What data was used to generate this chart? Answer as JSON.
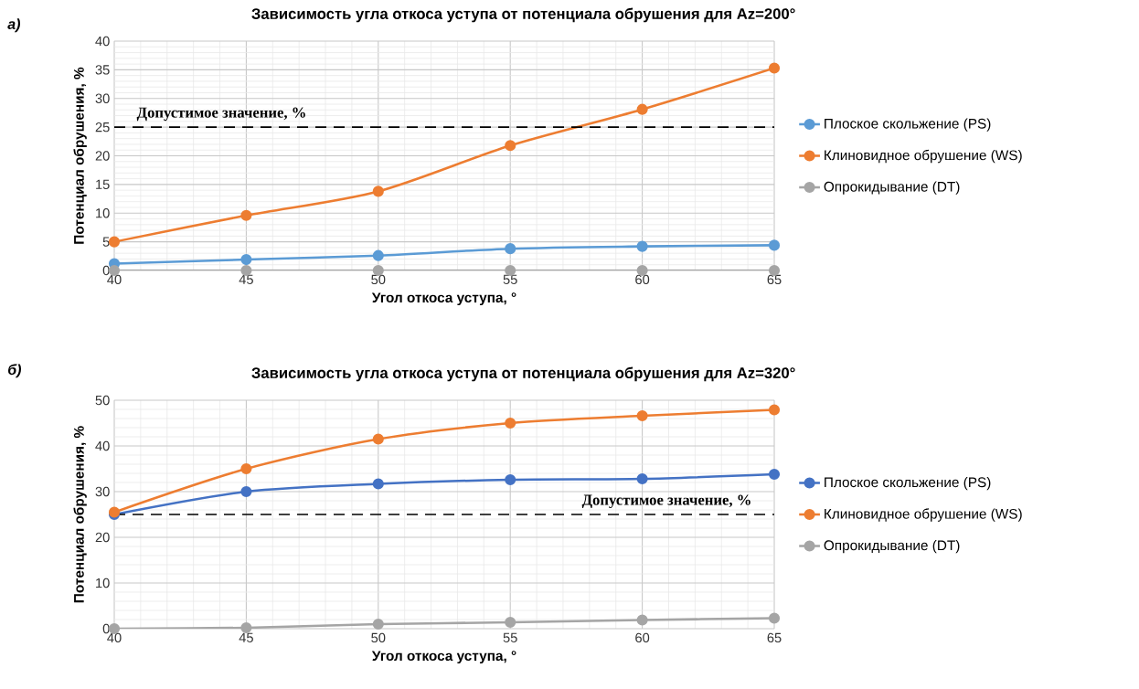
{
  "chart_data": [
    {
      "type": "line",
      "title": "Зависимость угла откоса уступа от потенциала обрушения для Az=200°",
      "xlabel": "Угол откоса уступа, °",
      "ylabel": "Потенциал обрушения, %",
      "annotations": [
        "а)"
      ],
      "x": [
        40,
        45,
        50,
        55,
        60,
        65
      ],
      "xlim": [
        40,
        65
      ],
      "xticks": [
        40,
        45,
        50,
        55,
        60,
        65
      ],
      "ylim": [
        0,
        40
      ],
      "yticks": [
        0,
        5,
        10,
        15,
        20,
        25,
        30,
        35,
        40
      ],
      "series": [
        {
          "name": "Плоское скольжение (PS)",
          "color": "#5b9bd5",
          "values": [
            1.2,
            1.9,
            2.6,
            3.8,
            4.2,
            4.4
          ]
        },
        {
          "name": "Клиновидное обрушение (WS)",
          "color": "#ed7d31",
          "values": [
            5,
            9.6,
            13.8,
            21.8,
            28.1,
            35.3
          ]
        },
        {
          "name": "Опрокидывание (DT)",
          "color": "#a5a5a5",
          "values": [
            0,
            0,
            0,
            0,
            0,
            0
          ]
        }
      ],
      "ref_lines": [
        {
          "axis": "y",
          "value": 25,
          "label": "Допустимое значение, %",
          "color": "#000000",
          "line_style": "dashed"
        }
      ],
      "grid": true,
      "legend": "right",
      "marker": "circle",
      "line_style": "solid"
    },
    {
      "type": "line",
      "title": "Зависимость угла откоса уступа от потенциала обрушения для Az=320°",
      "xlabel": "Угол откоса уступа, °",
      "ylabel": "Потенциал обрушения, %",
      "annotations": [
        "б)"
      ],
      "x": [
        40,
        45,
        50,
        55,
        60,
        65
      ],
      "xlim": [
        40,
        65
      ],
      "xticks": [
        40,
        45,
        50,
        55,
        60,
        65
      ],
      "ylim": [
        0,
        50
      ],
      "yticks": [
        0,
        10,
        20,
        30,
        40,
        50
      ],
      "series": [
        {
          "name": "Плоское скольжение (PS)",
          "color": "#4472c4",
          "values": [
            25,
            30,
            31.7,
            32.6,
            32.8,
            33.8
          ]
        },
        {
          "name": "Клиновидное обрушение (WS)",
          "color": "#ed7d31",
          "values": [
            25.5,
            35,
            41.5,
            45,
            46.6,
            47.9
          ]
        },
        {
          "name": "Опрокидывание (DT)",
          "color": "#a5a5a5",
          "values": [
            0,
            0.2,
            1,
            1.4,
            1.9,
            2.3
          ]
        }
      ],
      "ref_lines": [
        {
          "axis": "y",
          "value": 25,
          "label": "Допустимое значение, %",
          "color": "#000000",
          "line_style": "dashed"
        }
      ],
      "grid": true,
      "legend": "right",
      "marker": "circle",
      "line_style": "solid"
    }
  ]
}
